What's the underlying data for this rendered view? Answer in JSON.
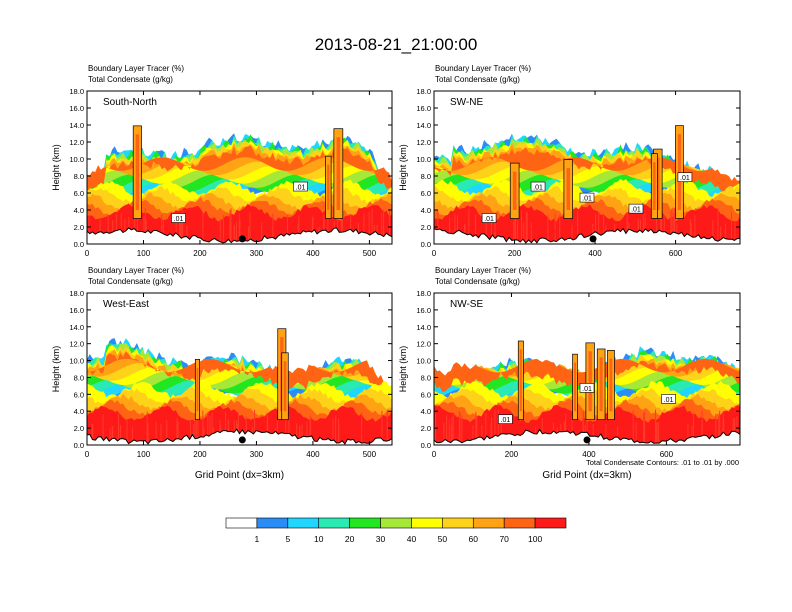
{
  "title": "2013-08-21_21:00:00",
  "chart_data": [
    {
      "type": "heatmap",
      "label": "South-North",
      "subtitles": [
        "Boundary Layer Tracer   (%)",
        "Total Condensate   (g/kg)"
      ],
      "ylabel": "Height (km)",
      "xlabel": "",
      "xlim": [
        0,
        540
      ],
      "ylim": [
        0,
        18
      ],
      "xticks": [
        "0",
        "100",
        "200",
        "300",
        "400",
        "500"
      ],
      "yticks": [
        "0.0",
        "2.0",
        "4.0",
        "6.0",
        "8.0",
        "10.0",
        "12.0",
        "14.0",
        "16.0",
        "18.0"
      ],
      "marker_x": 275,
      "contour_labels": [
        ".01",
        ".01"
      ]
    },
    {
      "type": "heatmap",
      "label": "SW-NE",
      "subtitles": [
        "Boundary Layer Tracer   (%)",
        "Total Condensate   (g/kg)"
      ],
      "ylabel": "Height (km)",
      "xlabel": "",
      "xlim": [
        0,
        760
      ],
      "ylim": [
        0,
        18
      ],
      "xticks": [
        "0",
        "200",
        "400",
        "600"
      ],
      "yticks": [
        "0.0",
        "2.0",
        "4.0",
        "6.0",
        "8.0",
        "10.0",
        "12.0",
        "14.0",
        "16.0",
        "18.0"
      ],
      "marker_x": 395,
      "contour_labels": [
        ".01",
        ".01",
        ".01",
        ".01",
        ".01"
      ]
    },
    {
      "type": "heatmap",
      "label": "West-East",
      "subtitles": [
        "Boundary Layer Tracer   (%)",
        "Total Condensate   (g/kg)"
      ],
      "ylabel": "Height (km)",
      "xlabel": "Grid Point (dx=3km)",
      "xlim": [
        0,
        540
      ],
      "ylim": [
        0,
        18
      ],
      "xticks": [
        "0",
        "100",
        "200",
        "300",
        "400",
        "500"
      ],
      "yticks": [
        "0.0",
        "2.0",
        "4.0",
        "6.0",
        "8.0",
        "10.0",
        "12.0",
        "14.0",
        "16.0",
        "18.0"
      ],
      "marker_x": 275,
      "contour_labels": []
    },
    {
      "type": "heatmap",
      "label": "NW-SE",
      "subtitles": [
        "Boundary Layer Tracer   (%)",
        "Total Condensate   (g/kg)"
      ],
      "ylabel": "Height (km)",
      "xlabel": "Grid Point (dx=3km)",
      "xlim": [
        0,
        790
      ],
      "ylim": [
        0,
        18
      ],
      "xticks": [
        "0",
        "200",
        "400",
        "600"
      ],
      "yticks": [
        "0.0",
        "2.0",
        "4.0",
        "6.0",
        "8.0",
        "10.0",
        "12.0",
        "14.0",
        "16.0",
        "18.0"
      ],
      "marker_x": 395,
      "contour_labels": [
        ".01",
        ".01",
        ".01"
      ]
    }
  ],
  "contour_note": "Total Condensate Contours: .01 to .01 by .000",
  "colorbar": {
    "colors": [
      "#ffffff",
      "#2a8cf5",
      "#1fd6ff",
      "#2aeab3",
      "#22e622",
      "#a6e838",
      "#ffff00",
      "#ffd21a",
      "#ffa214",
      "#ff6414",
      "#ff1a1a"
    ],
    "labels": [
      "1",
      "5",
      "10",
      "20",
      "30",
      "40",
      "50",
      "60",
      "70",
      "100"
    ]
  }
}
